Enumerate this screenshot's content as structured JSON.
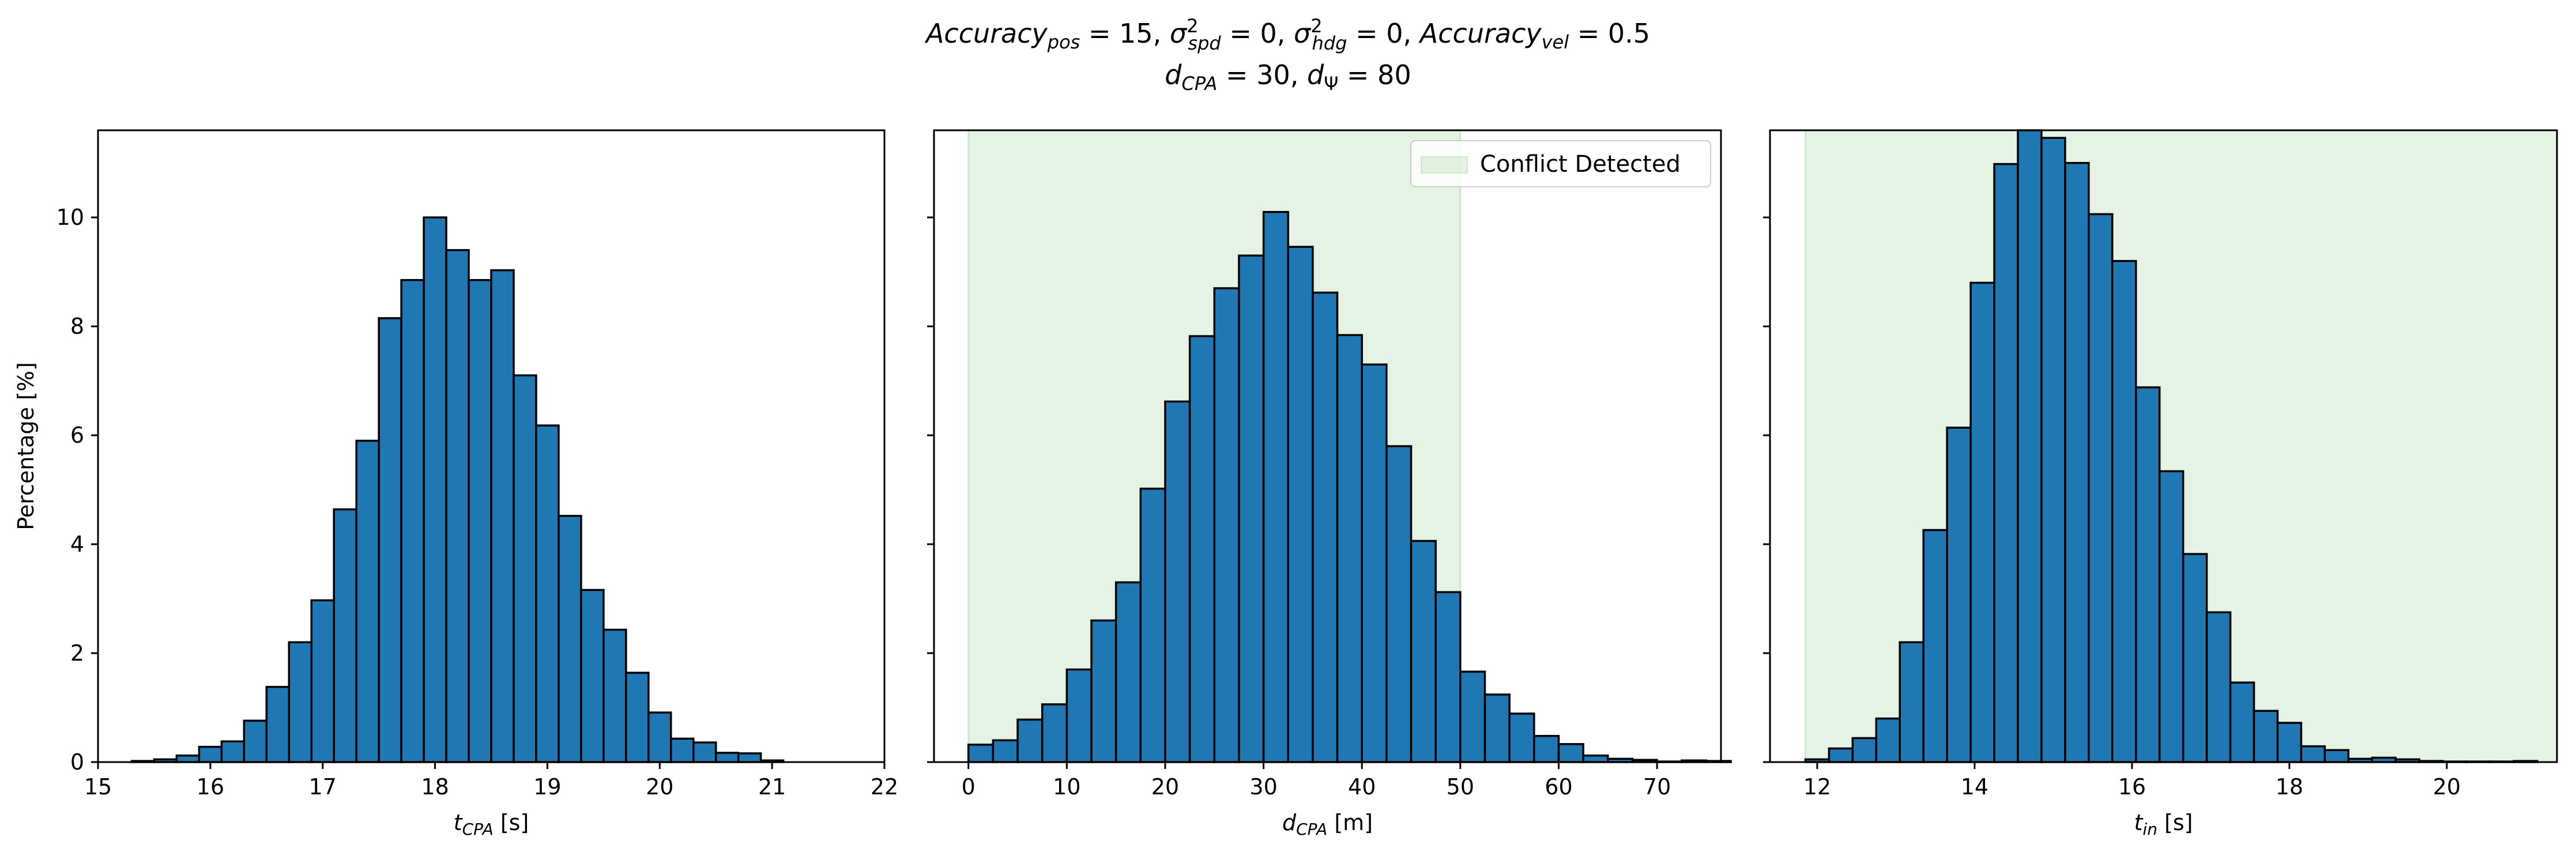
{
  "figure": {
    "title_line1": "Accuracy_pos = 15, σ²_spd = 0, σ²_hdg = 0, Accuracy_vel = 0.5",
    "title_line2": "d_CPA = 30, d_Ψ = 80",
    "bar_color": "#1f77b4",
    "edge_color": "#000000",
    "region_color": "#2ca02c"
  },
  "chart_data": [
    {
      "type": "bar",
      "xlabel": "t_CPA [s]",
      "ylabel": "Percentage [%]",
      "xlim": [
        15.0,
        22.0
      ],
      "ylim": [
        0,
        11.6
      ],
      "xticks": [
        15,
        16,
        17,
        18,
        19,
        20,
        21,
        22
      ],
      "yticks": [
        0,
        2,
        4,
        6,
        8,
        10
      ],
      "bin_start": 15.3,
      "bin_width": 0.2,
      "values": [
        0.02,
        0.05,
        0.12,
        0.28,
        0.38,
        0.76,
        1.38,
        2.2,
        2.97,
        4.64,
        5.9,
        8.15,
        8.85,
        10.0,
        9.4,
        8.85,
        9.03,
        7.1,
        6.18,
        4.52,
        3.16,
        2.43,
        1.64,
        0.91,
        0.43,
        0.36,
        0.17,
        0.16,
        0.03
      ],
      "region": null,
      "legend": null
    },
    {
      "type": "bar",
      "xlabel": "d_CPA [m]",
      "ylabel": "",
      "xlim": [
        -3.5,
        76.5
      ],
      "ylim": [
        0,
        11.6
      ],
      "xticks": [
        0,
        10,
        20,
        30,
        40,
        50,
        60,
        70
      ],
      "yticks": [
        0,
        2,
        4,
        6,
        8,
        10
      ],
      "bin_start": 0.0,
      "bin_width": 2.5,
      "values": [
        0.32,
        0.4,
        0.78,
        1.06,
        1.7,
        2.6,
        3.3,
        5.02,
        6.62,
        7.82,
        8.7,
        9.3,
        10.1,
        9.46,
        8.62,
        7.84,
        7.3,
        5.8,
        4.06,
        3.12,
        1.66,
        1.24,
        0.89,
        0.48,
        0.33,
        0.12,
        0.06,
        0.04,
        0.01,
        0.03,
        0.02
      ],
      "region": {
        "x0": 0,
        "x1": 50
      },
      "legend": {
        "label": "Conflict Detected",
        "placement": "upper right"
      }
    },
    {
      "type": "bar",
      "xlabel": "t_in [s]",
      "ylabel": "",
      "xlim": [
        11.4,
        21.4
      ],
      "ylim": [
        0,
        11.6
      ],
      "xticks": [
        12,
        14,
        16,
        18,
        20
      ],
      "yticks": [
        0,
        2,
        4,
        6,
        8,
        10
      ],
      "bin_start": 11.85,
      "bin_width": 0.3,
      "values": [
        0.05,
        0.25,
        0.44,
        0.8,
        2.2,
        4.26,
        6.14,
        8.8,
        10.98,
        11.7,
        11.46,
        11.0,
        10.06,
        9.2,
        6.88,
        5.34,
        3.82,
        2.75,
        1.46,
        0.94,
        0.72,
        0.29,
        0.22,
        0.06,
        0.08,
        0.05,
        0.02,
        0.01,
        0.01,
        0.01,
        0.02
      ],
      "region": {
        "x0": 11.85,
        "x1": 21.4
      },
      "legend": null
    }
  ]
}
